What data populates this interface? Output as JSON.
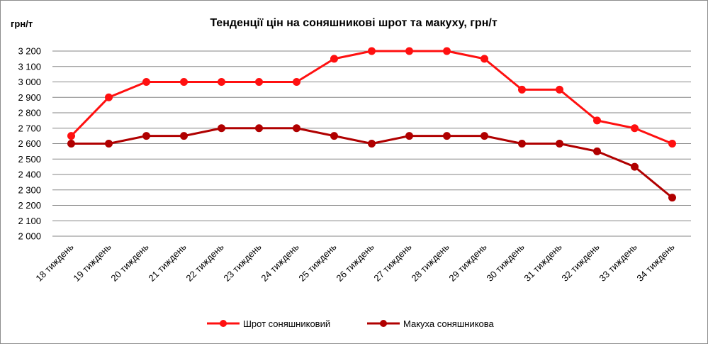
{
  "chart_data": {
    "type": "line",
    "title": "Тенденції цін на соняшникові шрот та макуху, грн/т",
    "ylabel": "грн/т",
    "xlabel": "",
    "ylim": [
      2000,
      3200
    ],
    "ytick_step": 100,
    "ytick_labels": [
      "2 000",
      "2 100",
      "2 200",
      "2 300",
      "2 400",
      "2 500",
      "2 600",
      "2 700",
      "2 800",
      "2 900",
      "3 000",
      "3 100",
      "3 200"
    ],
    "grid": true,
    "legend_position": "bottom",
    "categories": [
      "18 тиждень",
      "19 тиждень",
      "20 тиждень",
      "21 тиждень",
      "22 тиждень",
      "23 тиждень",
      "24 тиждень",
      "25 тиждень",
      "26 тиждень",
      "27 тиждень",
      "28 тиждень",
      "29 тиждень",
      "30 тиждень",
      "31 тиждень",
      "32 тиждень",
      "33 тиждень",
      "34 тиждень"
    ],
    "series": [
      {
        "name": "Шрот соняшниковий",
        "color": "#ff1010",
        "values": [
          2650,
          2900,
          3000,
          3000,
          3000,
          3000,
          3000,
          3150,
          3200,
          3200,
          3200,
          3150,
          2950,
          2950,
          2750,
          2700,
          2600
        ]
      },
      {
        "name": "Макуха соняшникова",
        "color": "#b00000",
        "values": [
          2600,
          2600,
          2650,
          2650,
          2700,
          2700,
          2700,
          2650,
          2600,
          2650,
          2650,
          2650,
          2600,
          2600,
          2550,
          2450,
          2250
        ]
      }
    ]
  }
}
